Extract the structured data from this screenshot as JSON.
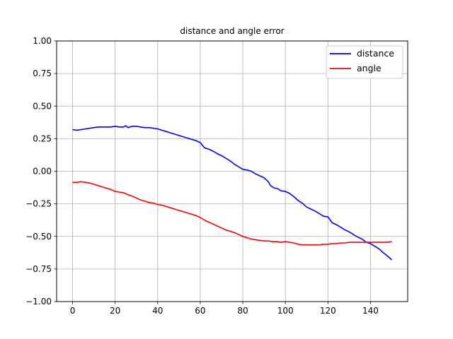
{
  "chart_data": {
    "type": "line",
    "title": "distance and angle error",
    "xlabel": "",
    "ylabel": "",
    "xlim": [
      -7.5,
      157.5
    ],
    "ylim": [
      -1.0,
      1.0
    ],
    "xticks": [
      0,
      20,
      40,
      60,
      80,
      100,
      120,
      140
    ],
    "yticks": [
      -1.0,
      -0.75,
      -0.5,
      -0.25,
      0.0,
      0.25,
      0.5,
      0.75,
      1.0
    ],
    "xtick_labels": [
      "0",
      "20",
      "40",
      "60",
      "80",
      "100",
      "120",
      "140"
    ],
    "ytick_labels": [
      "−1.00",
      "−0.75",
      "−0.50",
      "−0.25",
      "0.00",
      "0.25",
      "0.50",
      "0.75",
      "1.00"
    ],
    "grid": true,
    "legend_position": "top-right",
    "series": [
      {
        "name": "distance",
        "color": "#0000ff",
        "x": [
          0,
          2,
          4,
          6,
          8,
          10,
          12,
          14,
          16,
          18,
          20,
          22,
          24,
          25,
          26,
          28,
          30,
          32,
          34,
          36,
          38,
          40,
          42,
          44,
          46,
          48,
          50,
          52,
          54,
          56,
          58,
          60,
          62,
          64,
          66,
          68,
          70,
          72,
          74,
          76,
          78,
          80,
          82,
          84,
          86,
          88,
          90,
          92,
          93,
          95,
          96,
          98,
          100,
          102,
          104,
          106,
          108,
          110,
          112,
          114,
          116,
          118,
          120,
          122,
          124,
          126,
          128,
          130,
          132,
          134,
          136,
          138,
          140,
          142,
          144,
          146,
          148,
          150
        ],
        "values": [
          0.32,
          0.315,
          0.32,
          0.325,
          0.33,
          0.335,
          0.34,
          0.34,
          0.34,
          0.34,
          0.345,
          0.34,
          0.34,
          0.35,
          0.335,
          0.345,
          0.345,
          0.34,
          0.335,
          0.335,
          0.33,
          0.325,
          0.315,
          0.305,
          0.295,
          0.285,
          0.275,
          0.265,
          0.255,
          0.245,
          0.235,
          0.22,
          0.18,
          0.17,
          0.155,
          0.135,
          0.12,
          0.1,
          0.08,
          0.055,
          0.035,
          0.015,
          0.01,
          0.0,
          -0.02,
          -0.035,
          -0.05,
          -0.08,
          -0.11,
          -0.13,
          -0.13,
          -0.15,
          -0.155,
          -0.17,
          -0.195,
          -0.225,
          -0.245,
          -0.275,
          -0.29,
          -0.305,
          -0.325,
          -0.345,
          -0.35,
          -0.395,
          -0.41,
          -0.43,
          -0.45,
          -0.465,
          -0.485,
          -0.505,
          -0.52,
          -0.545,
          -0.555,
          -0.575,
          -0.595,
          -0.625,
          -0.65,
          -0.68
        ]
      },
      {
        "name": "angle",
        "color": "#ff0000",
        "x": [
          0,
          2,
          4,
          6,
          8,
          10,
          12,
          14,
          16,
          18,
          20,
          22,
          24,
          26,
          28,
          30,
          32,
          34,
          36,
          38,
          40,
          42,
          44,
          46,
          48,
          50,
          52,
          54,
          56,
          58,
          60,
          62,
          64,
          66,
          68,
          70,
          72,
          74,
          76,
          78,
          80,
          82,
          84,
          86,
          88,
          90,
          92,
          94,
          96,
          98,
          100,
          102,
          104,
          106,
          108,
          110,
          112,
          114,
          116,
          118,
          120,
          122,
          124,
          126,
          128,
          130,
          132,
          134,
          136,
          138,
          140,
          142,
          144,
          146,
          148,
          150
        ],
        "values": [
          -0.085,
          -0.085,
          -0.08,
          -0.085,
          -0.09,
          -0.1,
          -0.11,
          -0.12,
          -0.13,
          -0.14,
          -0.155,
          -0.16,
          -0.165,
          -0.18,
          -0.19,
          -0.205,
          -0.22,
          -0.23,
          -0.24,
          -0.245,
          -0.255,
          -0.26,
          -0.27,
          -0.28,
          -0.29,
          -0.3,
          -0.31,
          -0.32,
          -0.33,
          -0.34,
          -0.355,
          -0.375,
          -0.39,
          -0.405,
          -0.42,
          -0.435,
          -0.45,
          -0.46,
          -0.47,
          -0.485,
          -0.5,
          -0.51,
          -0.52,
          -0.525,
          -0.53,
          -0.535,
          -0.535,
          -0.54,
          -0.54,
          -0.545,
          -0.54,
          -0.545,
          -0.55,
          -0.56,
          -0.565,
          -0.565,
          -0.565,
          -0.565,
          -0.565,
          -0.56,
          -0.56,
          -0.555,
          -0.555,
          -0.55,
          -0.55,
          -0.545,
          -0.545,
          -0.545,
          -0.545,
          -0.545,
          -0.545,
          -0.545,
          -0.545,
          -0.545,
          -0.545,
          -0.54
        ]
      }
    ]
  }
}
